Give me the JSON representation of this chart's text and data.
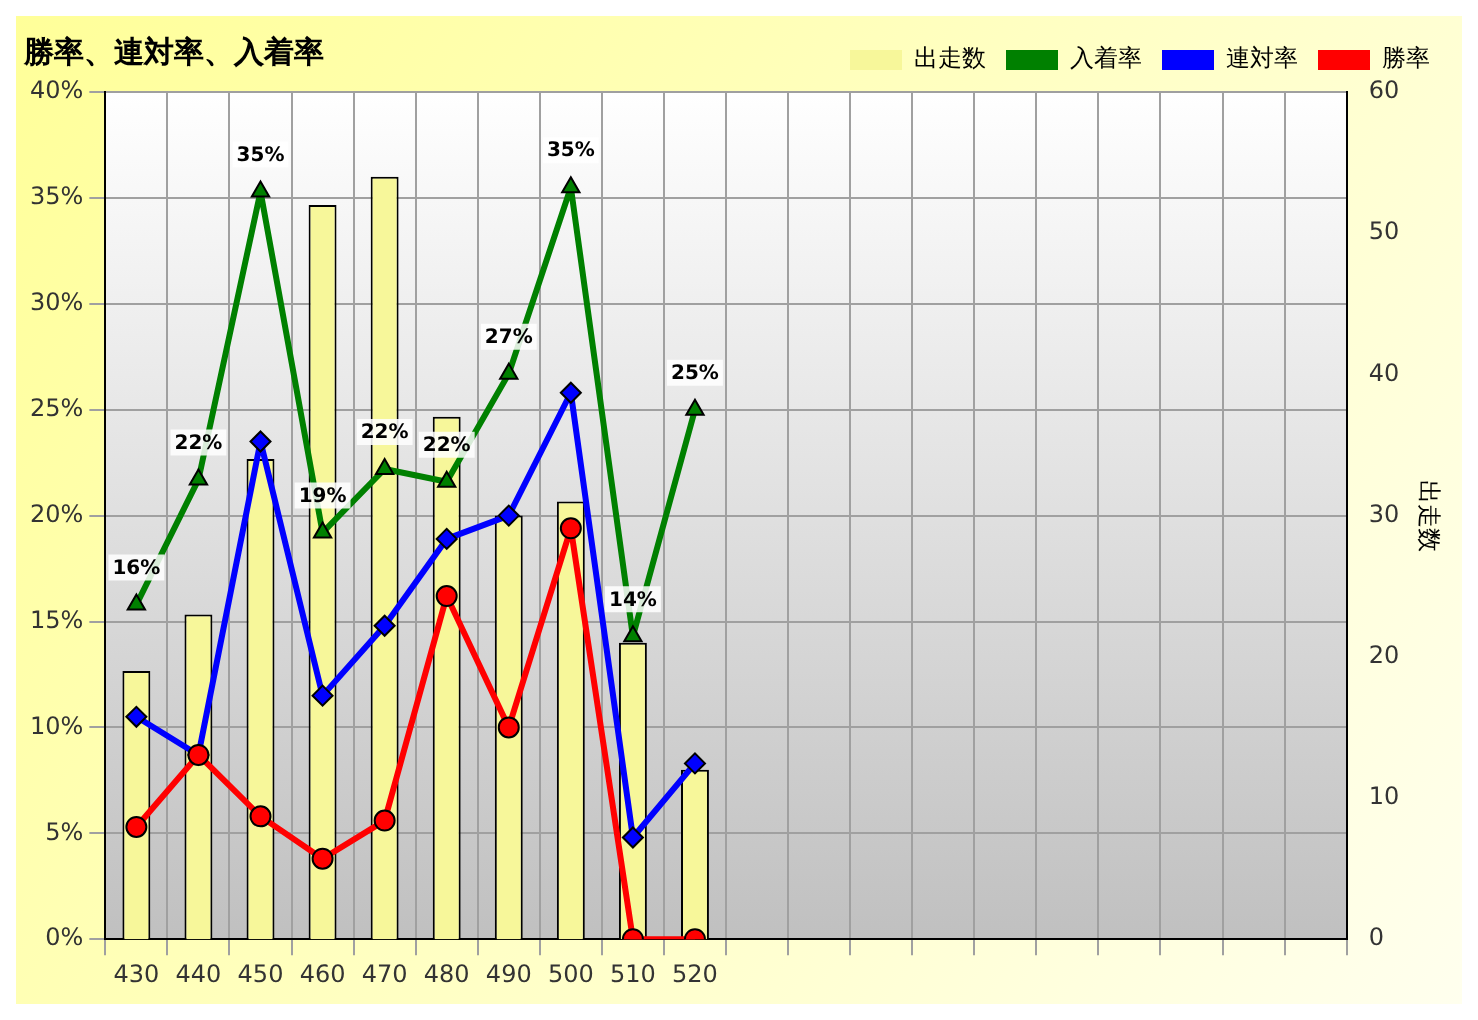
{
  "chart_data": {
    "type": "bar",
    "title": "勝率、連対率、入着率",
    "y2label": "出走数",
    "categories": [
      "430",
      "440",
      "450",
      "460",
      "470",
      "480",
      "490",
      "500",
      "510",
      "520",
      null,
      null,
      null,
      null,
      null,
      null,
      null,
      null,
      null,
      null
    ],
    "series": [
      {
        "name": "出走数",
        "axis": "y2",
        "color": "#f7f79a",
        "values": [
          19,
          23,
          34,
          52,
          54,
          37,
          30,
          31,
          21,
          12,
          null,
          null,
          null,
          null,
          null,
          null,
          null,
          null,
          null,
          null
        ]
      },
      {
        "name": "入着率",
        "type": "line",
        "marker": "triangle",
        "color": "#008000",
        "values": [
          15.8,
          21.7,
          35.3,
          19.2,
          22.2,
          21.6,
          26.7,
          35.5,
          14.3,
          25.0,
          null,
          null,
          null,
          null,
          null,
          null,
          null,
          null,
          null,
          null
        ],
        "value_labels": [
          "16%",
          "22%",
          "35%",
          "19%",
          "22%",
          "22%",
          "27%",
          "35%",
          "14%",
          "25%",
          null,
          null,
          null,
          null,
          null,
          null,
          null,
          null,
          null,
          null
        ]
      },
      {
        "name": "連対率",
        "type": "line",
        "marker": "diamond",
        "color": "#0000ff",
        "values": [
          10.5,
          8.7,
          23.5,
          11.5,
          14.8,
          18.9,
          20.0,
          25.8,
          4.8,
          8.3,
          null,
          null,
          null,
          null,
          null,
          null,
          null,
          null,
          null,
          null
        ]
      },
      {
        "name": "勝率",
        "type": "line",
        "marker": "circle",
        "color": "#ff0000",
        "values": [
          5.3,
          8.7,
          5.8,
          3.8,
          5.6,
          16.2,
          10.0,
          19.4,
          0,
          0,
          null,
          null,
          null,
          null,
          null,
          null,
          null,
          null,
          null,
          null
        ]
      }
    ],
    "ylim": [
      0,
      40
    ],
    "yticks": [
      {
        "value": 0,
        "label": "0%"
      },
      {
        "value": 5,
        "label": "5%"
      },
      {
        "value": 10,
        "label": "10%"
      },
      {
        "value": 15,
        "label": "15%"
      },
      {
        "value": 20,
        "label": "20%"
      },
      {
        "value": 25,
        "label": "25%"
      },
      {
        "value": 30,
        "label": "30%"
      },
      {
        "value": 35,
        "label": "35%"
      },
      {
        "value": 40,
        "label": "40%"
      }
    ],
    "y2lim": [
      0,
      60
    ],
    "y2ticks": [
      0,
      10,
      20,
      30,
      40,
      50,
      60
    ],
    "grid": true,
    "legend": "top right"
  }
}
